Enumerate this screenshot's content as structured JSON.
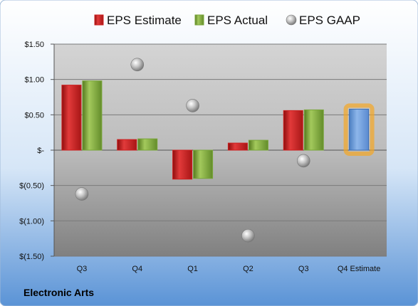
{
  "company": "Electronic Arts",
  "chart_data": {
    "type": "bar",
    "title": "",
    "xlabel": "",
    "ylabel": "",
    "categories": [
      "Q3",
      "Q4",
      "Q1",
      "Q2",
      "Q3",
      "Q4 Estimate"
    ],
    "ylim": [
      -1.5,
      1.5
    ],
    "yticks": [
      1.5,
      1.0,
      0.5,
      0,
      -0.5,
      -1.0,
      -1.5
    ],
    "ytick_labels": [
      "$1.50",
      "$1.00",
      "$0.50",
      "$-",
      "$(0.50)",
      "$(1.00)",
      "$(1.50)"
    ],
    "grid": true,
    "legend_position": "top",
    "series": [
      {
        "name": "EPS Estimate",
        "kind": "bar",
        "color": "#cc1f1f",
        "values": [
          0.92,
          0.15,
          -0.41,
          0.1,
          0.56,
          null
        ]
      },
      {
        "name": "EPS Actual",
        "kind": "bar",
        "color": "#79a63a",
        "values": [
          0.98,
          0.16,
          -0.4,
          0.14,
          0.57,
          null
        ]
      },
      {
        "name": "EPS GAAP",
        "kind": "marker",
        "color": "#a8a8a8",
        "values": [
          -0.62,
          1.21,
          0.63,
          -1.21,
          -0.15,
          null
        ]
      },
      {
        "name": "Q4 Estimate",
        "kind": "highlight-bar",
        "color": "#6f9fdd",
        "glow_color": "#f5a623",
        "values": [
          null,
          null,
          null,
          null,
          null,
          0.58
        ]
      }
    ]
  }
}
